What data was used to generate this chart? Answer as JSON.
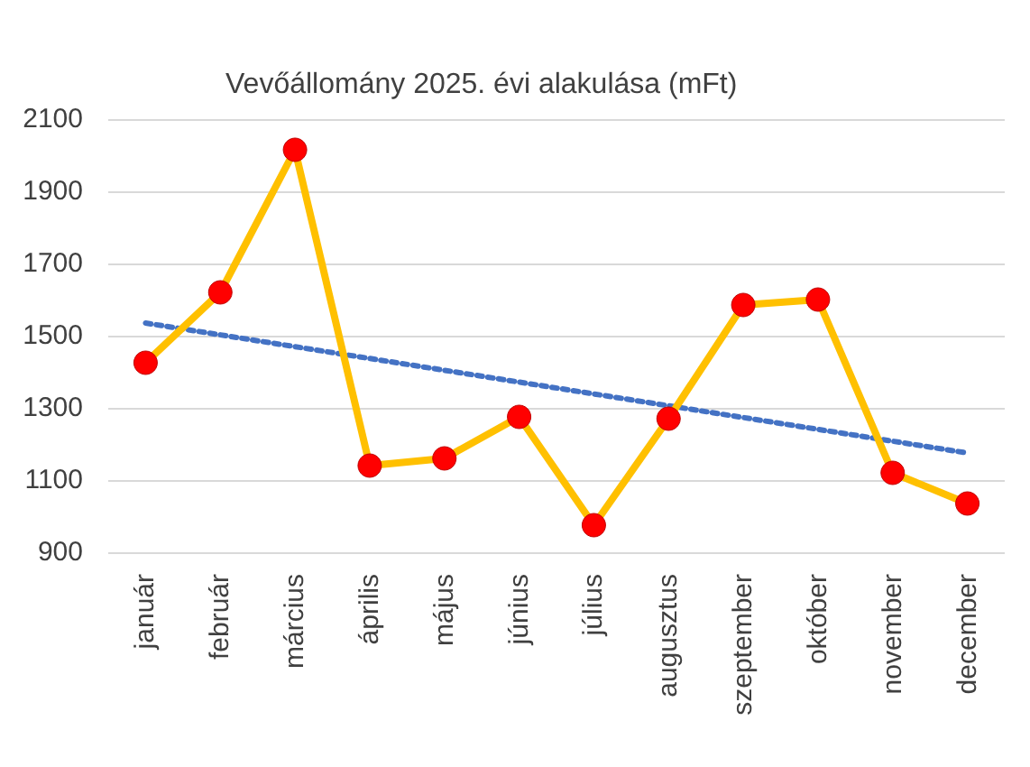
{
  "chart_data": {
    "type": "line",
    "title": "Vevőállomány 2025. évi alakulása (mFt)",
    "categories": [
      "január",
      "február",
      "március",
      "április",
      "május",
      "június",
      "július",
      "augusztus",
      "szeptember",
      "október",
      "november",
      "december"
    ],
    "series": [
      {
        "color": "#ffc000",
        "marker": "circle",
        "values": [
          1425,
          1620,
          2015,
          1140,
          1160,
          1275,
          975,
          1270,
          1585,
          1600,
          1120,
          1035
        ]
      },
      {
        "type": "line",
        "color": "#4472c4",
        "line_style": "dotted",
        "marker": "none",
        "x": [
          "január",
          "december"
        ],
        "values": [
          1535,
          1175
        ]
      }
    ],
    "ylim": [
      900,
      2100
    ],
    "yticks": [
      900,
      1100,
      1300,
      1500,
      1700,
      1900,
      2100
    ],
    "grid": "y"
  }
}
